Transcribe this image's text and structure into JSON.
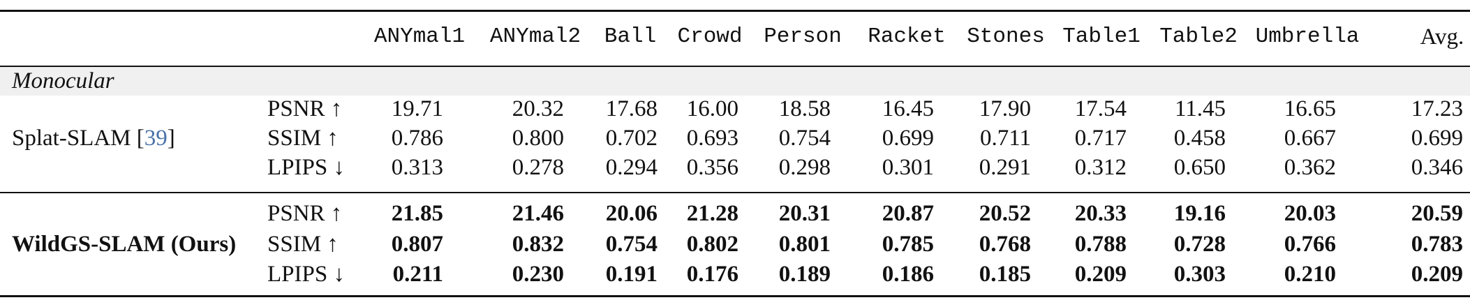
{
  "table": {
    "columns": [
      "ANYmal1",
      "ANYmal2",
      "Ball",
      "Crowd",
      "Person",
      "Racket",
      "Stones",
      "Table1",
      "Table2",
      "Umbrella",
      "Avg."
    ],
    "section_label": "Monocular",
    "groups": [
      {
        "method": "Splat-SLAM [",
        "citation": "39",
        "method_suffix": "]",
        "bold": false,
        "rows": [
          {
            "metric": "PSNR ↑",
            "values": [
              "19.71",
              "20.32",
              "17.68",
              "16.00",
              "18.58",
              "16.45",
              "17.90",
              "17.54",
              "11.45",
              "16.65",
              "17.23"
            ]
          },
          {
            "metric": "SSIM ↑",
            "values": [
              "0.786",
              "0.800",
              "0.702",
              "0.693",
              "0.754",
              "0.699",
              "0.711",
              "0.717",
              "0.458",
              "0.667",
              "0.699"
            ]
          },
          {
            "metric": "LPIPS ↓",
            "values": [
              "0.313",
              "0.278",
              "0.294",
              "0.356",
              "0.298",
              "0.301",
              "0.291",
              "0.312",
              "0.650",
              "0.362",
              "0.346"
            ]
          }
        ]
      },
      {
        "method": "WildGS-SLAM (Ours)",
        "citation": "",
        "method_suffix": "",
        "bold": true,
        "rows": [
          {
            "metric": "PSNR ↑",
            "values": [
              "21.85",
              "21.46",
              "20.06",
              "21.28",
              "20.31",
              "20.87",
              "20.52",
              "20.33",
              "19.16",
              "20.03",
              "20.59"
            ]
          },
          {
            "metric": "SSIM ↑",
            "values": [
              "0.807",
              "0.832",
              "0.754",
              "0.802",
              "0.801",
              "0.785",
              "0.768",
              "0.788",
              "0.728",
              "0.766",
              "0.783"
            ]
          },
          {
            "metric": "LPIPS ↓",
            "values": [
              "0.211",
              "0.230",
              "0.191",
              "0.176",
              "0.189",
              "0.186",
              "0.185",
              "0.209",
              "0.303",
              "0.210",
              "0.209"
            ]
          }
        ]
      }
    ]
  }
}
